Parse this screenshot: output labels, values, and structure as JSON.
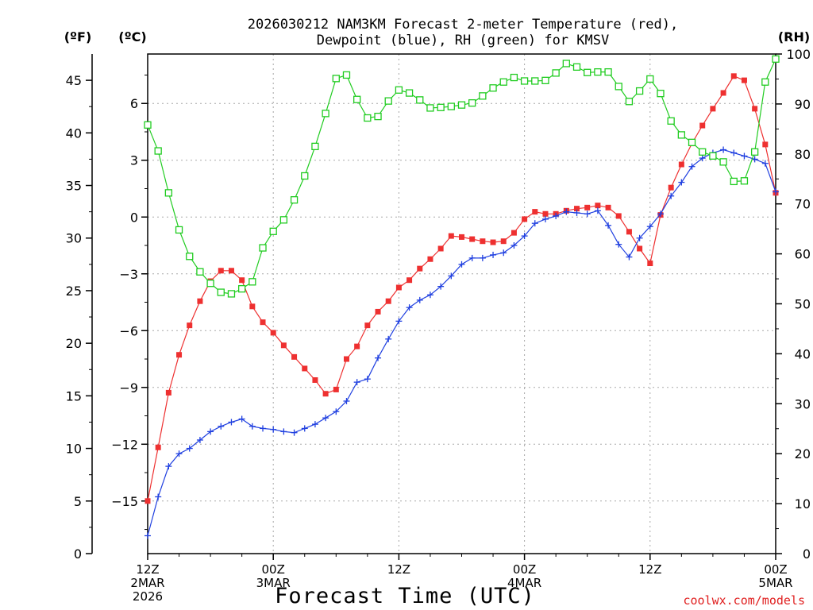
{
  "chart_data": {
    "type": "line",
    "title_line1": "2026030212 NAM3KM Forecast 2-meter Temperature (red),",
    "title_line2": "Dewpoint (blue), RH (green) for KMSV",
    "unit_f": "(ºF)",
    "unit_c": "(ºC)",
    "unit_rh": "(RH)",
    "xlabel": "Forecast Time (UTC)",
    "credit": "coolwx.com/models",
    "x_hours": [
      0,
      1,
      2,
      3,
      4,
      5,
      6,
      7,
      8,
      9,
      10,
      11,
      12,
      13,
      14,
      15,
      16,
      17,
      18,
      19,
      20,
      21,
      22,
      23,
      24,
      25,
      26,
      27,
      28,
      29,
      30,
      31,
      32,
      33,
      34,
      35,
      36,
      37,
      38,
      39,
      40,
      41,
      42,
      43,
      44,
      45,
      46,
      47,
      48,
      49,
      50,
      51,
      52,
      53,
      54,
      55,
      56,
      57,
      58,
      59,
      60
    ],
    "xlim": [
      0,
      60
    ],
    "ylim_f": [
      0,
      47.5
    ],
    "ylim_rh": [
      0,
      100
    ],
    "x_ticks": [
      {
        "h": 0,
        "lines": [
          "12Z",
          "2MAR",
          "2026"
        ]
      },
      {
        "h": 12,
        "lines": [
          "00Z",
          "3MAR"
        ]
      },
      {
        "h": 24,
        "lines": [
          "12Z"
        ]
      },
      {
        "h": 36,
        "lines": [
          "00Z",
          "4MAR"
        ]
      },
      {
        "h": 48,
        "lines": [
          "12Z"
        ]
      },
      {
        "h": 60,
        "lines": [
          "00Z",
          "5MAR"
        ]
      }
    ],
    "f_ticks": [
      "0",
      "5",
      "10",
      "15",
      "20",
      "25",
      "30",
      "35",
      "40",
      "45"
    ],
    "c_ticks": [
      {
        "c": -15,
        "label": "−15"
      },
      {
        "c": -12,
        "label": "−12"
      },
      {
        "c": -9,
        "label": "−9"
      },
      {
        "c": -6,
        "label": "−6"
      },
      {
        "c": -3,
        "label": "−3"
      },
      {
        "c": 0,
        "label": "0"
      },
      {
        "c": 3,
        "label": "3"
      },
      {
        "c": 6,
        "label": "6"
      }
    ],
    "rh_ticks": [
      "0",
      "10",
      "20",
      "30",
      "40",
      "50",
      "60",
      "70",
      "80",
      "90",
      "100"
    ],
    "series": [
      {
        "name": "2-meter Temperature",
        "axis": "F",
        "color": "#ee3030",
        "marker": "filled-square",
        "values": [
          5.0,
          10.1,
          15.3,
          18.9,
          21.7,
          24.0,
          25.9,
          26.9,
          26.9,
          26.0,
          23.5,
          22.0,
          21.0,
          19.8,
          18.7,
          17.6,
          16.5,
          15.2,
          15.6,
          18.5,
          19.7,
          21.7,
          23.0,
          24.0,
          25.3,
          26.0,
          27.1,
          28.0,
          29.0,
          30.2,
          30.1,
          29.9,
          29.7,
          29.6,
          29.7,
          30.5,
          31.8,
          32.5,
          32.3,
          32.3,
          32.6,
          32.8,
          32.9,
          33.1,
          32.9,
          32.1,
          30.6,
          29.0,
          27.6,
          32.2,
          34.8,
          37.0,
          39.0,
          40.7,
          42.3,
          43.8,
          45.4,
          45.0,
          42.3,
          38.9,
          34.3
        ]
      },
      {
        "name": "Dewpoint",
        "axis": "F",
        "color": "#2040e0",
        "marker": "plus",
        "values": [
          1.7,
          5.4,
          8.3,
          9.5,
          10.0,
          10.8,
          11.6,
          12.1,
          12.5,
          12.8,
          12.1,
          11.9,
          11.8,
          11.6,
          11.5,
          11.9,
          12.3,
          12.9,
          13.5,
          14.5,
          16.3,
          16.6,
          18.6,
          20.4,
          22.1,
          23.4,
          24.1,
          24.6,
          25.4,
          26.4,
          27.5,
          28.1,
          28.1,
          28.4,
          28.6,
          29.3,
          30.2,
          31.4,
          31.8,
          32.1,
          32.5,
          32.4,
          32.3,
          32.6,
          31.2,
          29.4,
          28.2,
          30.0,
          31.1,
          32.3,
          34.0,
          35.3,
          36.8,
          37.6,
          38.1,
          38.4,
          38.1,
          37.8,
          37.5,
          37.1,
          34.4
        ]
      },
      {
        "name": "RH",
        "axis": "RH",
        "color": "#20cc20",
        "marker": "open-square",
        "values": [
          85.8,
          80.6,
          72.2,
          64.8,
          59.5,
          56.4,
          54.1,
          52.3,
          52.0,
          53.0,
          54.4,
          61.2,
          64.5,
          66.8,
          70.8,
          75.6,
          81.5,
          88.1,
          95.1,
          95.8,
          90.9,
          87.2,
          87.5,
          90.6,
          92.8,
          92.2,
          90.8,
          89.2,
          89.3,
          89.5,
          89.8,
          90.2,
          91.6,
          93.2,
          94.4,
          95.3,
          94.6,
          94.6,
          94.7,
          96.2,
          98.1,
          97.4,
          96.3,
          96.4,
          96.4,
          93.5,
          90.5,
          92.6,
          95.0,
          92.1,
          86.6,
          83.8,
          82.3,
          80.4,
          79.6,
          78.4,
          74.5,
          74.6,
          80.4,
          94.4,
          99.0
        ]
      }
    ]
  }
}
